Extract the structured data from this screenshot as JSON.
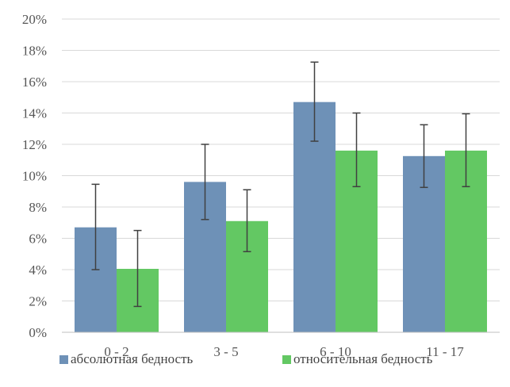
{
  "chart_data": {
    "type": "bar",
    "categories": [
      "0 - 2",
      "3 - 5",
      "6 - 10",
      "11 - 17"
    ],
    "series": [
      {
        "name": "абсолютная бедность",
        "color": "#6e91b7",
        "values": [
          6.7,
          9.6,
          14.7,
          11.25
        ],
        "error_low": [
          4.0,
          7.2,
          12.2,
          9.25
        ],
        "error_high": [
          9.45,
          12.0,
          17.25,
          13.25
        ]
      },
      {
        "name": "относительная бедность",
        "color": "#63c863",
        "values": [
          4.05,
          7.1,
          11.6,
          11.6
        ],
        "error_low": [
          1.65,
          5.15,
          9.3,
          9.3
        ],
        "error_high": [
          6.5,
          9.1,
          14.0,
          13.95
        ]
      }
    ],
    "ylim": [
      0,
      20
    ],
    "yticks": [
      0,
      2,
      4,
      6,
      8,
      10,
      12,
      14,
      16,
      18,
      20
    ],
    "ytick_labels": [
      "0%",
      "2%",
      "4%",
      "6%",
      "8%",
      "10%",
      "12%",
      "14%",
      "16%",
      "18%",
      "20%"
    ],
    "grid": true,
    "legend_position": "bottom",
    "title": "",
    "xlabel": "",
    "ylabel": ""
  }
}
